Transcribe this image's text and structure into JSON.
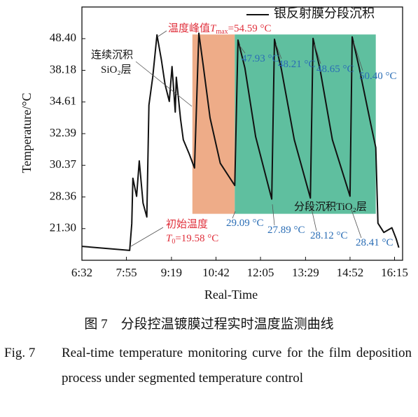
{
  "chart_data": {
    "type": "line",
    "xlabel": "Real-Time",
    "ylabel": "Temperature/°C",
    "xlim": [
      392,
      990
    ],
    "xticks": [
      {
        "value": 392,
        "label": "6:32"
      },
      {
        "value": 475,
        "label": "7:55"
      },
      {
        "value": 559,
        "label": "9:19"
      },
      {
        "value": 642,
        "label": "10:42"
      },
      {
        "value": 725,
        "label": "12:05"
      },
      {
        "value": 809,
        "label": "13:29"
      },
      {
        "value": 892,
        "label": "14:52"
      },
      {
        "value": 975,
        "label": "16:15"
      }
    ],
    "ylim": [
      18.8,
      84
    ],
    "yticks": [
      {
        "value": 21.3,
        "label": "21.30"
      },
      28.36,
      30.37,
      32.39,
      34.61,
      38.18,
      {
        "value": 48.4,
        "label": "48.40"
      }
    ],
    "legend": "top-right",
    "x": [
      392,
      481,
      485,
      487,
      494,
      499,
      506,
      513,
      517,
      524,
      532,
      540,
      547,
      555,
      560,
      566,
      568,
      576,
      581,
      592,
      602,
      610,
      618,
      631,
      650,
      677,
      683,
      696,
      716,
      746,
      751,
      764,
      788,
      818,
      823,
      836,
      859,
      892,
      896,
      909,
      931,
      940,
      944,
      955,
      970,
      978,
      983
    ],
    "series": [
      {
        "name": "银反射膜分段沉积",
        "color": "#111111",
        "values": [
          19.9,
          19.58,
          22.4,
          29.55,
          28.4,
          30.65,
          27.0,
          23.9,
          34.39,
          37.4,
          52.6,
          41.7,
          36.6,
          34.68,
          39.4,
          33.9,
          37.4,
          33.4,
          32.0,
          31.1,
          30.2,
          54.59,
          40.0,
          33.5,
          30.5,
          29.09,
          47.93,
          38.9,
          32.2,
          27.89,
          48.21,
          38.5,
          32.0,
          28.12,
          48.65,
          38.5,
          32.0,
          28.41,
          50.4,
          39.0,
          33.0,
          31.5,
          22.5,
          21.0,
          21.5,
          20.5,
          19.8
        ]
      }
    ],
    "regions": [
      {
        "x": [
          598,
          677
        ],
        "y": [
          24.6,
          53.1
        ],
        "color": "#eeac88"
      },
      {
        "x": [
          677,
          940
        ],
        "y": [
          24.6,
          53.1
        ],
        "color": "#5fbf9f"
      }
    ],
    "annotations": [
      {
        "color": "#e0303c",
        "parts": [
          {
            "text": "温度峰值"
          },
          {
            "text": "T",
            "style": "italic"
          },
          {
            "text": "max",
            "style": "sub"
          },
          {
            "text": "=54.59 °C"
          }
        ]
      },
      {
        "color": "#111111",
        "parts": [
          {
            "text": "连续沉积"
          }
        ]
      },
      {
        "color": "#111111",
        "parts": [
          {
            "text": "SiO₂层"
          }
        ]
      },
      {
        "color": "#e0303c",
        "parts": [
          {
            "text": "初始温度"
          }
        ]
      },
      {
        "color": "#e0303c",
        "parts": [
          {
            "text": "T",
            "style": "italic"
          },
          {
            "text": "0",
            "style": "sub"
          },
          {
            "text": "=19.58 °C"
          }
        ]
      },
      {
        "color": "#2a6db5",
        "parts": [
          {
            "text": "47.93 °C"
          }
        ]
      },
      {
        "color": "#2a6db5",
        "parts": [
          {
            "text": "48.21 °C"
          }
        ]
      },
      {
        "color": "#2a6db5",
        "parts": [
          {
            "text": "48.65 °C"
          }
        ]
      },
      {
        "color": "#2a6db5",
        "parts": [
          {
            "text": "50.40 °C"
          }
        ]
      },
      {
        "color": "#2a6db5",
        "parts": [
          {
            "text": "29.09 °C"
          }
        ]
      },
      {
        "color": "#2a6db5",
        "parts": [
          {
            "text": "27.89 °C"
          }
        ]
      },
      {
        "color": "#2a6db5",
        "parts": [
          {
            "text": "28.12 °C"
          }
        ]
      },
      {
        "color": "#2a6db5",
        "parts": [
          {
            "text": "28.41 °C"
          }
        ]
      },
      {
        "color": "#111111",
        "parts": [
          {
            "text": "分段沉积TiO₂层"
          }
        ]
      }
    ],
    "caption": {
      "cn_label": "图 7",
      "cn_text": "分段控温镀膜过程实时温度监测曲线",
      "en_label": "Fig. 7",
      "en_text": "Real-time temperature monitoring curve for the film deposition process under segmented temperature control"
    }
  }
}
